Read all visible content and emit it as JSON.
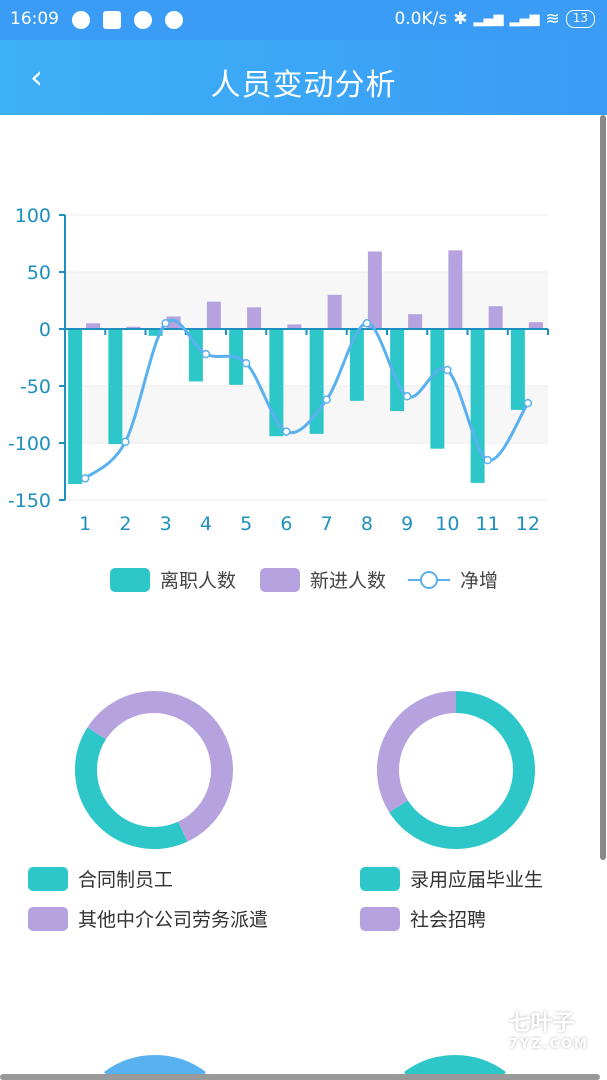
{
  "status_bar": {
    "time": "16:09",
    "net_speed": "0.0K/s",
    "battery": "13"
  },
  "header": {
    "title": "人员变动分析",
    "back_icon": "chevron-left-icon"
  },
  "chart_data": [
    {
      "type": "bar",
      "categories": [
        "1",
        "2",
        "3",
        "4",
        "5",
        "6",
        "7",
        "8",
        "9",
        "10",
        "11",
        "12"
      ],
      "yticks": [
        "100",
        "50",
        "0",
        "-50",
        "-100",
        "-150"
      ],
      "ylim": [
        -150,
        100
      ],
      "grid": true,
      "series": [
        {
          "name": "离职人数",
          "type": "bar",
          "color": "#2ec7c9",
          "values": [
            -136,
            -101,
            -6,
            -46,
            -49,
            -94,
            -92,
            -63,
            -72,
            -105,
            -135,
            -71
          ]
        },
        {
          "name": "新进人数",
          "type": "bar",
          "color": "#b6a2de",
          "values": [
            5,
            2,
            11,
            24,
            19,
            4,
            30,
            68,
            13,
            69,
            20,
            6
          ]
        },
        {
          "name": "净增",
          "type": "line",
          "color": "#5ab1ef",
          "values": [
            -131,
            -99,
            5,
            -22,
            -30,
            -90,
            -62,
            5,
            -59,
            -36,
            -115,
            -65
          ]
        }
      ],
      "legend": "bottom"
    },
    {
      "type": "pie",
      "series": [
        {
          "name": "合同制员工",
          "value": 0.41,
          "color": "#2ec7c9"
        },
        {
          "name": "其他中介公司劳务派遣",
          "value": 0.59,
          "color": "#b6a2de"
        }
      ]
    },
    {
      "type": "pie",
      "series": [
        {
          "name": "录用应届毕业生",
          "value": 0.66,
          "color": "#2ec7c9"
        },
        {
          "name": "社会招聘",
          "value": 0.34,
          "color": "#b6a2de"
        }
      ]
    }
  ],
  "watermark": {
    "text": "七叶子",
    "sub": "7YZ.COM"
  }
}
